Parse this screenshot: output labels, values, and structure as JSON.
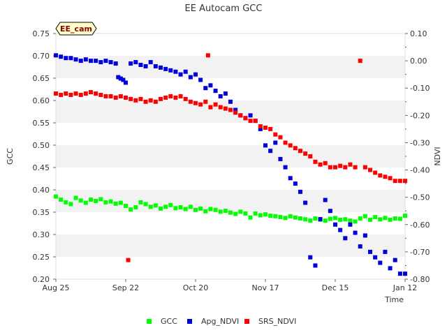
{
  "chart_data": {
    "type": "scatter",
    "title": "EE Autocam GCC",
    "badge": "EE_cam",
    "xlabel": "Time",
    "ylabel_left": "GCC",
    "ylabel_right": "NDVI",
    "x_range": [
      "2023-08-25",
      "2024-01-12"
    ],
    "x_ticks": [
      {
        "date": "2023-08-25",
        "label": "Aug 25"
      },
      {
        "date": "2023-09-22",
        "label": "Sep 22"
      },
      {
        "date": "2023-10-20",
        "label": "Oct 20"
      },
      {
        "date": "2023-11-17",
        "label": "Nov 17"
      },
      {
        "date": "2023-12-15",
        "label": "Dec 15"
      },
      {
        "date": "2024-01-12",
        "label": "Jan 12"
      }
    ],
    "ylim_left": [
      0.2,
      0.75
    ],
    "yticks_left": [
      "0.20",
      "0.25",
      "0.30",
      "0.35",
      "0.40",
      "0.45",
      "0.50",
      "0.55",
      "0.60",
      "0.65",
      "0.70",
      "0.75"
    ],
    "ylim_right": [
      -0.8,
      0.1
    ],
    "yticks_right": [
      "-0.80",
      "-0.70",
      "-0.60",
      "-0.50",
      "-0.40",
      "-0.30",
      "-0.20",
      "-0.10",
      "0.00",
      "0.10"
    ],
    "grid": "horizontal bands",
    "legend_position": "bottom",
    "series": [
      {
        "name": "GCC",
        "color": "#00ff00",
        "axis": "left",
        "points": [
          [
            "2023-08-25",
            0.385
          ],
          [
            "2023-08-27",
            0.378
          ],
          [
            "2023-08-29",
            0.372
          ],
          [
            "2023-08-31",
            0.368
          ],
          [
            "2023-09-02",
            0.382
          ],
          [
            "2023-09-04",
            0.376
          ],
          [
            "2023-09-06",
            0.371
          ],
          [
            "2023-09-08",
            0.378
          ],
          [
            "2023-09-10",
            0.375
          ],
          [
            "2023-09-12",
            0.379
          ],
          [
            "2023-09-14",
            0.372
          ],
          [
            "2023-09-16",
            0.374
          ],
          [
            "2023-09-18",
            0.369
          ],
          [
            "2023-09-20",
            0.371
          ],
          [
            "2023-09-22",
            0.364
          ],
          [
            "2023-09-24",
            0.356
          ],
          [
            "2023-09-26",
            0.361
          ],
          [
            "2023-09-28",
            0.372
          ],
          [
            "2023-09-30",
            0.368
          ],
          [
            "2023-10-02",
            0.362
          ],
          [
            "2023-10-04",
            0.365
          ],
          [
            "2023-10-06",
            0.358
          ],
          [
            "2023-10-08",
            0.362
          ],
          [
            "2023-10-10",
            0.366
          ],
          [
            "2023-10-12",
            0.359
          ],
          [
            "2023-10-14",
            0.361
          ],
          [
            "2023-10-16",
            0.357
          ],
          [
            "2023-10-18",
            0.362
          ],
          [
            "2023-10-20",
            0.355
          ],
          [
            "2023-10-22",
            0.358
          ],
          [
            "2023-10-24",
            0.352
          ],
          [
            "2023-10-26",
            0.357
          ],
          [
            "2023-10-28",
            0.355
          ],
          [
            "2023-10-30",
            0.351
          ],
          [
            "2023-11-01",
            0.353
          ],
          [
            "2023-11-03",
            0.349
          ],
          [
            "2023-11-05",
            0.346
          ],
          [
            "2023-11-07",
            0.351
          ],
          [
            "2023-11-09",
            0.347
          ],
          [
            "2023-11-11",
            0.338
          ],
          [
            "2023-11-13",
            0.347
          ],
          [
            "2023-11-15",
            0.343
          ],
          [
            "2023-11-17",
            0.345
          ],
          [
            "2023-11-19",
            0.342
          ],
          [
            "2023-11-21",
            0.341
          ],
          [
            "2023-11-23",
            0.339
          ],
          [
            "2023-11-25",
            0.337
          ],
          [
            "2023-11-27",
            0.341
          ],
          [
            "2023-11-29",
            0.338
          ],
          [
            "2023-12-01",
            0.336
          ],
          [
            "2023-12-03",
            0.334
          ],
          [
            "2023-12-05",
            0.331
          ],
          [
            "2023-12-07",
            0.336
          ],
          [
            "2023-12-09",
            0.333
          ],
          [
            "2023-12-11",
            0.331
          ],
          [
            "2023-12-13",
            0.335
          ],
          [
            "2023-12-15",
            0.337
          ],
          [
            "2023-12-17",
            0.333
          ],
          [
            "2023-12-19",
            0.334
          ],
          [
            "2023-12-21",
            0.331
          ],
          [
            "2023-12-23",
            0.329
          ],
          [
            "2023-12-25",
            0.336
          ],
          [
            "2023-12-27",
            0.341
          ],
          [
            "2023-12-29",
            0.333
          ],
          [
            "2023-12-31",
            0.339
          ],
          [
            "2024-01-02",
            0.334
          ],
          [
            "2024-01-04",
            0.337
          ],
          [
            "2024-01-06",
            0.333
          ],
          [
            "2024-01-08",
            0.336
          ],
          [
            "2024-01-10",
            0.335
          ],
          [
            "2024-01-12",
            0.342
          ]
        ]
      },
      {
        "name": "Apg_NDVI",
        "color": "#0000dd",
        "axis": "right",
        "points": [
          [
            "2023-08-25",
            0.02
          ],
          [
            "2023-08-27",
            0.015
          ],
          [
            "2023-08-29",
            0.01
          ],
          [
            "2023-08-31",
            0.01
          ],
          [
            "2023-09-02",
            0.005
          ],
          [
            "2023-09-04",
            0.0
          ],
          [
            "2023-09-06",
            0.005
          ],
          [
            "2023-09-08",
            0.0
          ],
          [
            "2023-09-10",
            0.0
          ],
          [
            "2023-09-12",
            -0.005
          ],
          [
            "2023-09-14",
            0.0
          ],
          [
            "2023-09-16",
            -0.005
          ],
          [
            "2023-09-18",
            -0.01
          ],
          [
            "2023-09-19",
            -0.06
          ],
          [
            "2023-09-20",
            -0.065
          ],
          [
            "2023-09-21",
            -0.07
          ],
          [
            "2023-09-22",
            -0.08
          ],
          [
            "2023-09-24",
            -0.01
          ],
          [
            "2023-09-26",
            -0.005
          ],
          [
            "2023-09-28",
            -0.015
          ],
          [
            "2023-09-30",
            -0.02
          ],
          [
            "2023-10-02",
            -0.005
          ],
          [
            "2023-10-04",
            -0.02
          ],
          [
            "2023-10-06",
            -0.025
          ],
          [
            "2023-10-08",
            -0.03
          ],
          [
            "2023-10-10",
            -0.035
          ],
          [
            "2023-10-12",
            -0.04
          ],
          [
            "2023-10-14",
            -0.05
          ],
          [
            "2023-10-16",
            -0.04
          ],
          [
            "2023-10-18",
            -0.06
          ],
          [
            "2023-10-20",
            -0.05
          ],
          [
            "2023-10-22",
            -0.07
          ],
          [
            "2023-10-24",
            -0.1
          ],
          [
            "2023-10-26",
            -0.09
          ],
          [
            "2023-10-28",
            -0.11
          ],
          [
            "2023-10-30",
            -0.13
          ],
          [
            "2023-11-01",
            -0.12
          ],
          [
            "2023-11-03",
            -0.15
          ],
          [
            "2023-11-05",
            -0.18
          ],
          [
            "2023-11-07",
            -0.2
          ],
          [
            "2023-11-09",
            -0.21
          ],
          [
            "2023-11-11",
            -0.2
          ],
          [
            "2023-11-13",
            -0.22
          ],
          [
            "2023-11-15",
            -0.25
          ],
          [
            "2023-11-17",
            -0.31
          ],
          [
            "2023-11-19",
            -0.33
          ],
          [
            "2023-11-21",
            -0.3
          ],
          [
            "2023-11-23",
            -0.36
          ],
          [
            "2023-11-25",
            -0.39
          ],
          [
            "2023-11-27",
            -0.43
          ],
          [
            "2023-11-29",
            -0.45
          ],
          [
            "2023-12-01",
            -0.48
          ],
          [
            "2023-12-03",
            -0.52
          ],
          [
            "2023-12-05",
            -0.72
          ],
          [
            "2023-12-07",
            -0.75
          ],
          [
            "2023-12-09",
            -0.58
          ],
          [
            "2023-12-11",
            -0.51
          ],
          [
            "2023-12-13",
            -0.55
          ],
          [
            "2023-12-15",
            -0.6
          ],
          [
            "2023-12-17",
            -0.62
          ],
          [
            "2023-12-19",
            -0.65
          ],
          [
            "2023-12-21",
            -0.6
          ],
          [
            "2023-12-23",
            -0.63
          ],
          [
            "2023-12-25",
            -0.68
          ],
          [
            "2023-12-27",
            -0.64
          ],
          [
            "2023-12-29",
            -0.7
          ],
          [
            "2023-12-31",
            -0.72
          ],
          [
            "2024-01-02",
            -0.74
          ],
          [
            "2024-01-04",
            -0.7
          ],
          [
            "2024-01-06",
            -0.76
          ],
          [
            "2024-01-08",
            -0.73
          ],
          [
            "2024-01-10",
            -0.78
          ],
          [
            "2024-01-12",
            -0.78
          ]
        ]
      },
      {
        "name": "SRS_NDVI",
        "color": "#ff0000",
        "axis": "right",
        "points": [
          [
            "2023-08-25",
            -0.12
          ],
          [
            "2023-08-27",
            -0.125
          ],
          [
            "2023-08-29",
            -0.12
          ],
          [
            "2023-08-31",
            -0.125
          ],
          [
            "2023-09-02",
            -0.12
          ],
          [
            "2023-09-04",
            -0.125
          ],
          [
            "2023-09-06",
            -0.12
          ],
          [
            "2023-09-08",
            -0.115
          ],
          [
            "2023-09-10",
            -0.12
          ],
          [
            "2023-09-12",
            -0.125
          ],
          [
            "2023-09-14",
            -0.13
          ],
          [
            "2023-09-16",
            -0.13
          ],
          [
            "2023-09-18",
            -0.135
          ],
          [
            "2023-09-20",
            -0.13
          ],
          [
            "2023-09-22",
            -0.135
          ],
          [
            "2023-09-23",
            -0.73
          ],
          [
            "2023-09-24",
            -0.14
          ],
          [
            "2023-09-26",
            -0.145
          ],
          [
            "2023-09-28",
            -0.14
          ],
          [
            "2023-09-30",
            -0.15
          ],
          [
            "2023-10-02",
            -0.145
          ],
          [
            "2023-10-04",
            -0.15
          ],
          [
            "2023-10-06",
            -0.14
          ],
          [
            "2023-10-08",
            -0.135
          ],
          [
            "2023-10-10",
            -0.13
          ],
          [
            "2023-10-12",
            -0.135
          ],
          [
            "2023-10-14",
            -0.13
          ],
          [
            "2023-10-16",
            -0.14
          ],
          [
            "2023-10-18",
            -0.15
          ],
          [
            "2023-10-20",
            -0.155
          ],
          [
            "2023-10-22",
            -0.16
          ],
          [
            "2023-10-24",
            -0.15
          ],
          [
            "2023-10-25",
            0.02
          ],
          [
            "2023-10-26",
            -0.17
          ],
          [
            "2023-10-28",
            -0.16
          ],
          [
            "2023-10-30",
            -0.17
          ],
          [
            "2023-11-01",
            -0.175
          ],
          [
            "2023-11-03",
            -0.18
          ],
          [
            "2023-11-05",
            -0.19
          ],
          [
            "2023-11-07",
            -0.2
          ],
          [
            "2023-11-09",
            -0.21
          ],
          [
            "2023-11-11",
            -0.22
          ],
          [
            "2023-11-13",
            -0.22
          ],
          [
            "2023-11-15",
            -0.24
          ],
          [
            "2023-11-17",
            -0.245
          ],
          [
            "2023-11-19",
            -0.25
          ],
          [
            "2023-11-21",
            -0.27
          ],
          [
            "2023-11-23",
            -0.28
          ],
          [
            "2023-11-25",
            -0.3
          ],
          [
            "2023-11-27",
            -0.31
          ],
          [
            "2023-11-29",
            -0.32
          ],
          [
            "2023-12-01",
            -0.33
          ],
          [
            "2023-12-03",
            -0.34
          ],
          [
            "2023-12-05",
            -0.35
          ],
          [
            "2023-12-07",
            -0.37
          ],
          [
            "2023-12-09",
            -0.38
          ],
          [
            "2023-12-11",
            -0.375
          ],
          [
            "2023-12-13",
            -0.39
          ],
          [
            "2023-12-15",
            -0.39
          ],
          [
            "2023-12-17",
            -0.385
          ],
          [
            "2023-12-19",
            -0.39
          ],
          [
            "2023-12-21",
            -0.38
          ],
          [
            "2023-12-23",
            -0.39
          ],
          [
            "2023-12-25",
            0.0
          ],
          [
            "2023-12-27",
            -0.39
          ],
          [
            "2023-12-29",
            -0.4
          ],
          [
            "2023-12-31",
            -0.41
          ],
          [
            "2024-01-02",
            -0.42
          ],
          [
            "2024-01-04",
            -0.425
          ],
          [
            "2024-01-06",
            -0.43
          ],
          [
            "2024-01-08",
            -0.44
          ],
          [
            "2024-01-10",
            -0.44
          ],
          [
            "2024-01-12",
            -0.44
          ]
        ]
      }
    ]
  }
}
